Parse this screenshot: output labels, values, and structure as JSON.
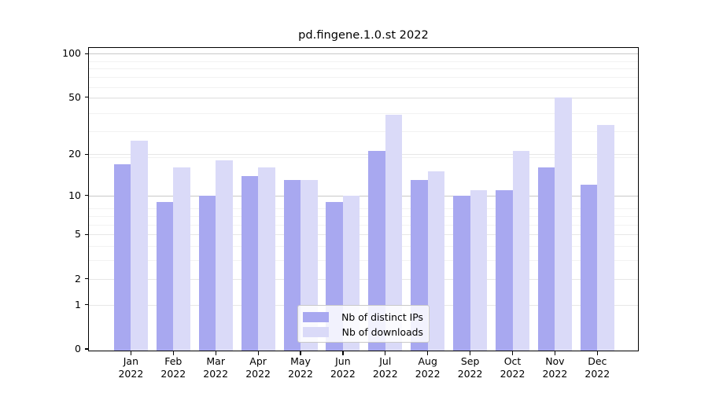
{
  "chart_data": {
    "type": "bar",
    "title": "pd.fingene.1.0.st 2022",
    "categories": [
      "Jan",
      "Feb",
      "Mar",
      "Apr",
      "May",
      "Jun",
      "Jul",
      "Aug",
      "Sep",
      "Oct",
      "Nov",
      "Dec"
    ],
    "year_label": "2022",
    "series": [
      {
        "name": "Nb of distinct IPs",
        "color": "#a8a8f0",
        "values": [
          17,
          9,
          10,
          14,
          13,
          9,
          21,
          13,
          10,
          11,
          16,
          12
        ]
      },
      {
        "name": "Nb of downloads",
        "color": "#dadaf8",
        "values": [
          25,
          16,
          18,
          16,
          13,
          10,
          38,
          15,
          11,
          21,
          50,
          32
        ]
      }
    ],
    "yticks": [
      100,
      50,
      20,
      10,
      5,
      2,
      1,
      0
    ],
    "ylabel": "",
    "xlabel": "",
    "ylim": [
      0,
      108
    ],
    "yscale": "log1p",
    "grid": true,
    "legend_position": "lower center inside plot",
    "colors": {
      "grid_minor": "#f2f2f2",
      "grid_major_light": "#e7e7e7",
      "grid_major_dark": "#c9c9c9",
      "spine": "#000000",
      "background": "#ffffff"
    }
  }
}
